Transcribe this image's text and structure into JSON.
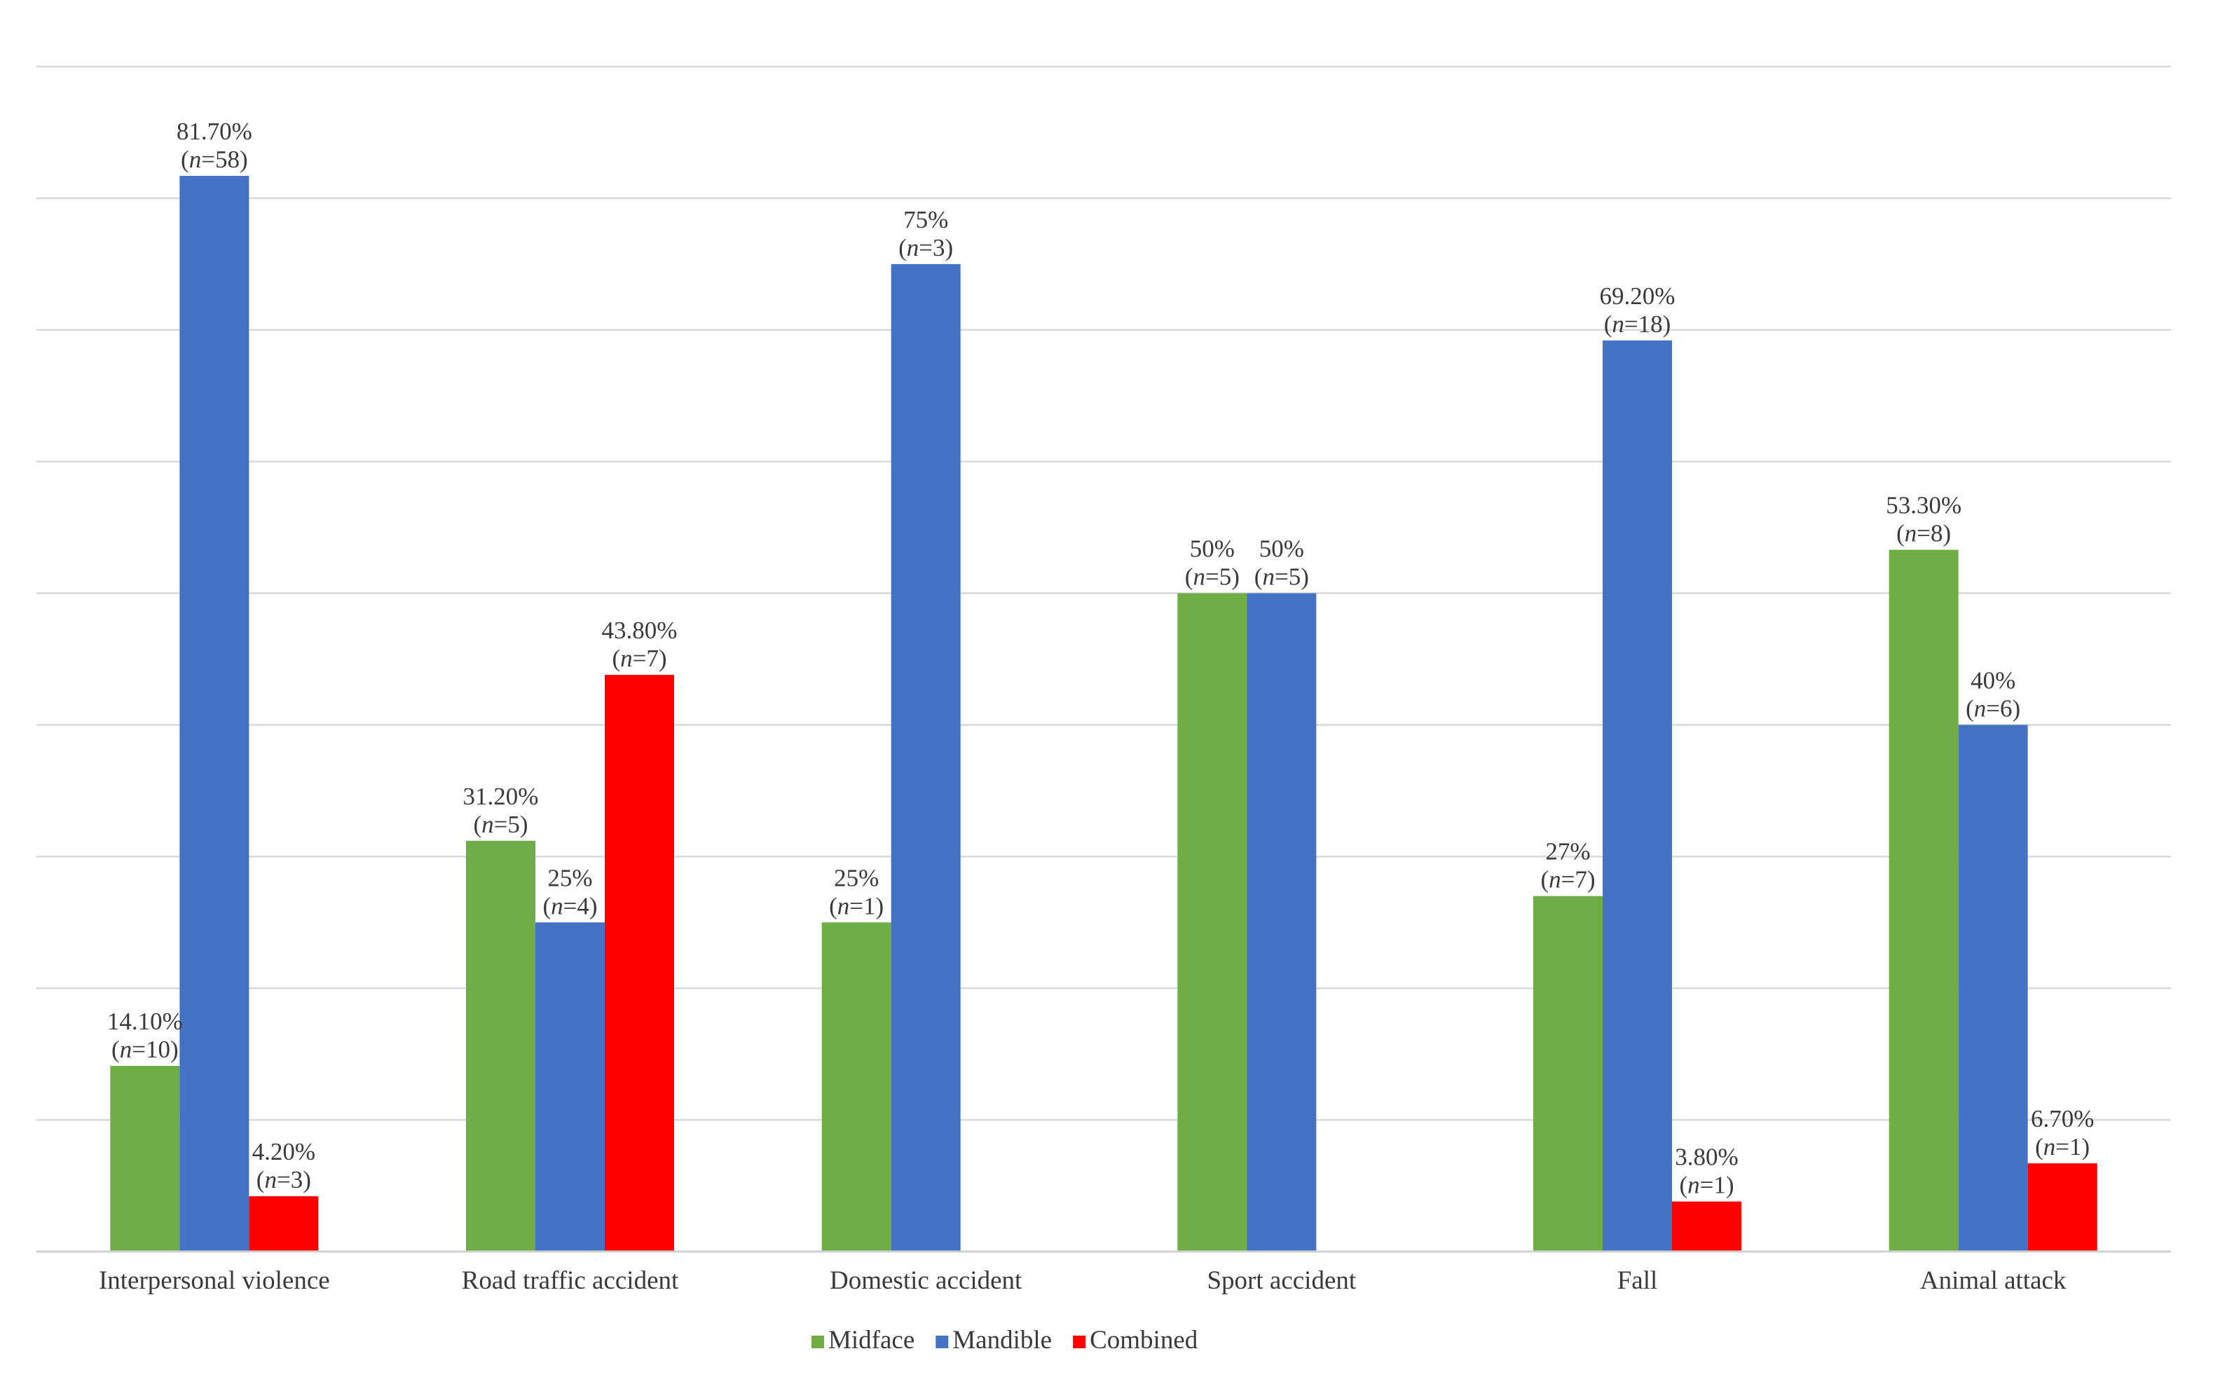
{
  "chart_data": {
    "type": "bar",
    "title": "",
    "xlabel": "",
    "ylabel": "",
    "ylim": [
      0,
      90
    ],
    "grid": true,
    "legend_position": "bottom",
    "categories": [
      "Interpersonal violence",
      "Road traffic accident",
      "Domestic accident",
      "Sport accident",
      "Fall",
      "Animal attack"
    ],
    "series": [
      {
        "name": "Midface",
        "color": "#70ad47",
        "values": [
          14.1,
          31.2,
          25,
          50,
          27,
          53.3
        ],
        "labels": [
          "14.10%",
          "31.20%",
          "25%",
          "50%",
          "27%",
          "53.30%"
        ],
        "n": [
          "10",
          "5",
          "1",
          "5",
          "7",
          "8"
        ]
      },
      {
        "name": "Mandible",
        "color": "#4472c4",
        "values": [
          81.7,
          25,
          75,
          50,
          69.2,
          40
        ],
        "labels": [
          "81.70%",
          "25%",
          "75%",
          "50%",
          "69.20%",
          "40%"
        ],
        "n": [
          "58",
          "4",
          "3",
          "5",
          "18",
          "6"
        ]
      },
      {
        "name": "Combined",
        "color": "#ff0000",
        "values": [
          4.2,
          43.8,
          null,
          null,
          3.8,
          6.7
        ],
        "labels": [
          "4.20%",
          "43.80%",
          null,
          null,
          "3.80%",
          "6.70%"
        ],
        "n": [
          "3",
          "7",
          null,
          null,
          "1",
          "1"
        ]
      }
    ]
  }
}
